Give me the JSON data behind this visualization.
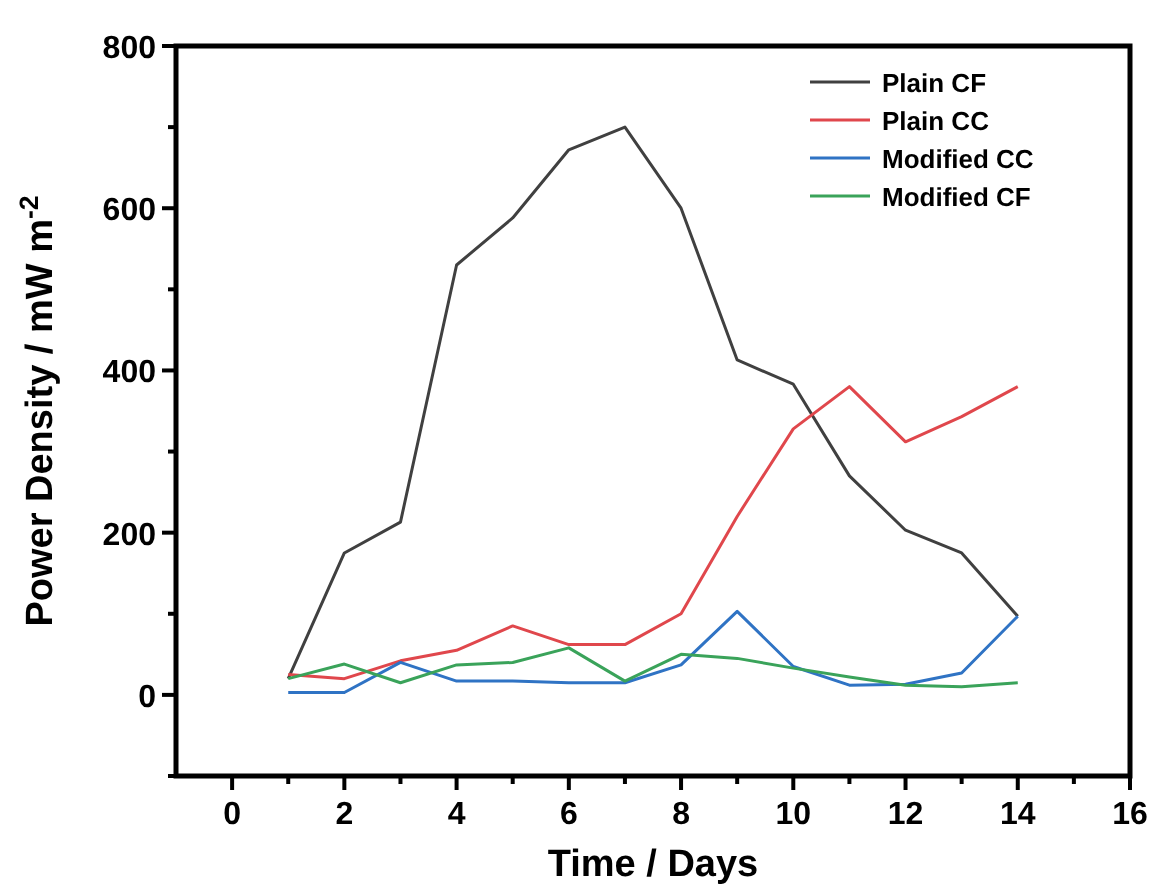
{
  "chart_data": {
    "type": "line",
    "xlabel": "Time / Days",
    "ylabel": "Power Density / mW m$^{-2}$",
    "x": [
      1,
      2,
      3,
      4,
      5,
      6,
      7,
      8,
      9,
      10,
      11,
      12,
      13,
      14
    ],
    "series": [
      {
        "name": "Plain CF",
        "color": "#404040",
        "values": [
          20,
          175,
          213,
          530,
          588,
          672,
          700,
          600,
          413,
          383,
          270,
          203,
          175,
          97
        ]
      },
      {
        "name": "Plain CC",
        "color": "#e0474c",
        "values": [
          25,
          20,
          42,
          55,
          85,
          62,
          62,
          100,
          220,
          328,
          380,
          312,
          343,
          380
        ]
      },
      {
        "name": "Modified CC",
        "color": "#2f73c4",
        "values": [
          3,
          3,
          40,
          17,
          17,
          15,
          15,
          37,
          103,
          35,
          12,
          13,
          27,
          97
        ]
      },
      {
        "name": "Modified CF",
        "color": "#3aa35a",
        "values": [
          20,
          38,
          15,
          37,
          40,
          58,
          17,
          50,
          45,
          33,
          22,
          12,
          10,
          15
        ]
      }
    ],
    "xlim": [
      -1,
      16
    ],
    "xticks": [
      0,
      {
        "value": 1,
        "label": null
      },
      2,
      {
        "value": 3,
        "label": null
      },
      4,
      {
        "value": 5,
        "label": null
      },
      6,
      {
        "value": 7,
        "label": null
      },
      8,
      {
        "value": 9,
        "label": null
      },
      10,
      {
        "value": 11,
        "label": null
      },
      12,
      {
        "value": 13,
        "label": null
      },
      14,
      {
        "value": 15,
        "label": null
      },
      16
    ],
    "ylim": [
      -100,
      800
    ],
    "yticks": [
      {
        "value": -100,
        "label": null
      },
      0,
      {
        "value": 100,
        "label": null
      },
      200,
      {
        "value": 300,
        "label": null
      },
      400,
      {
        "value": 500,
        "label": null
      },
      600,
      {
        "value": 700,
        "label": null
      },
      800
    ],
    "legend": "top right",
    "grid": false,
    "marker": "none",
    "line_style": "solid"
  }
}
